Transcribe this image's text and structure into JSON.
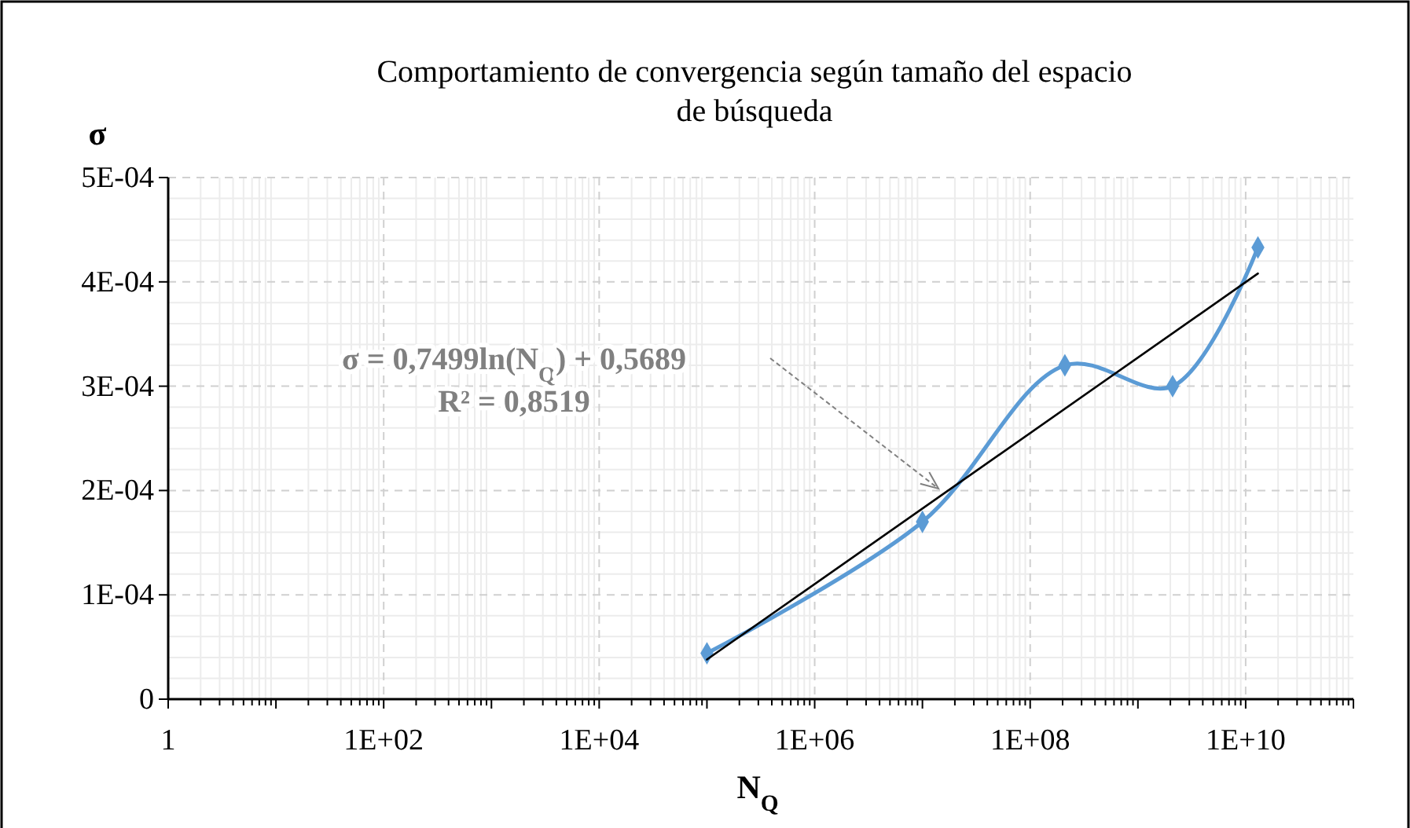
{
  "chart_data": {
    "type": "line",
    "title": "Comportamiento de convergencia según tamaño del espacio de búsqueda",
    "xlabel": "N$_{Q}$",
    "ylabel": "σ",
    "log": "x",
    "xlim": [
      1,
      100000000000.0
    ],
    "xticks": [
      1,
      {
        "value": 10.0,
        "label": null
      },
      {
        "value": 100.0,
        "label": "1E+02"
      },
      {
        "value": 1000.0,
        "label": null
      },
      {
        "value": 10000.0,
        "label": "1E+04"
      },
      {
        "value": 100000.0,
        "label": null
      },
      {
        "value": 1000000.0,
        "label": "1E+06"
      },
      {
        "value": 10000000.0,
        "label": null
      },
      {
        "value": 100000000.0,
        "label": "1E+08"
      },
      {
        "value": 1000000000.0,
        "label": null
      },
      {
        "value": 10000000000.0,
        "label": "1E+10"
      },
      {
        "value": 100000000000.0,
        "label": null
      }
    ],
    "ylim": [
      0,
      0.0005
    ],
    "yticks": [
      0,
      {
        "value": 0.0001,
        "label": "1E-04"
      },
      {
        "value": 0.0002,
        "label": "2E-04"
      },
      {
        "value": 0.0003,
        "label": "3E-04"
      },
      {
        "value": 0.0004,
        "label": "4E-04"
      },
      {
        "value": 0.0005,
        "label": "5E-04"
      }
    ],
    "grid": true,
    "marker": "diamond",
    "line_style": "solid",
    "series": [
      {
        "color": "#5b9bd5",
        "x": [
          100000.0,
          10000000.0,
          210000000.0,
          2100000000.0,
          13000000000.0
        ],
        "values": [
          4.4e-05,
          0.00017,
          0.00032,
          0.0003,
          0.000433
        ]
      },
      {
        "type": "line",
        "color": "#000000",
        "marker": "none",
        "x": [
          100000.0,
          13000000000.0
        ],
        "values": [
          3.8e-05,
          0.000408
        ]
      }
    ],
    "annotations": [
      "σ = 0,7499ln(N$_{Q}$) + 0,5689",
      "R² = 0,8519"
    ]
  }
}
